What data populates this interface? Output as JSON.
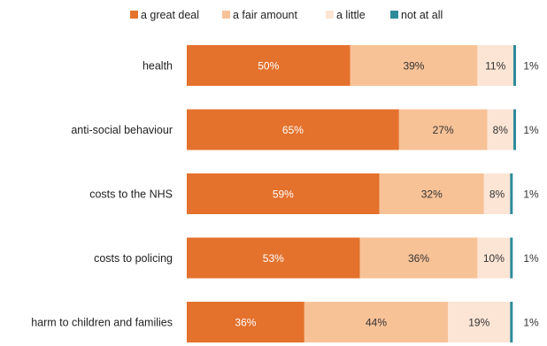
{
  "chart_data": {
    "type": "bar",
    "orientation": "horizontal",
    "stacked": true,
    "categories": [
      "health",
      "anti-social behaviour",
      "costs to the NHS",
      "costs to policing",
      "harm to children and families"
    ],
    "series": [
      {
        "name": "a great deal",
        "values": [
          50,
          65,
          59,
          53,
          36
        ],
        "labels": [
          "50%",
          "65%",
          "59%",
          "53%",
          "36%"
        ],
        "color": "#E4712C",
        "label_color": "#ffffff"
      },
      {
        "name": "a fair amount",
        "values": [
          39,
          27,
          32,
          36,
          44
        ],
        "labels": [
          "39%",
          "27%",
          "32%",
          "36%",
          "44%"
        ],
        "color": "#F8C297",
        "label_color": "#333333"
      },
      {
        "name": "a little",
        "values": [
          11,
          8,
          8,
          10,
          19
        ],
        "labels": [
          "11%",
          "8%",
          "8%",
          "10%",
          "19%"
        ],
        "color": "#FCE5D5",
        "label_color": "#333333"
      },
      {
        "name": "not at all",
        "values": [
          1,
          1,
          1,
          1,
          1
        ],
        "labels": [
          "1%",
          "1%",
          "1%",
          "1%",
          "1%"
        ],
        "color": "#2E8B9A",
        "label_color": "#333333"
      }
    ],
    "xlim": [
      0,
      101
    ],
    "legend": "top",
    "grid": false,
    "title": "",
    "xlabel": "",
    "ylabel": ""
  }
}
